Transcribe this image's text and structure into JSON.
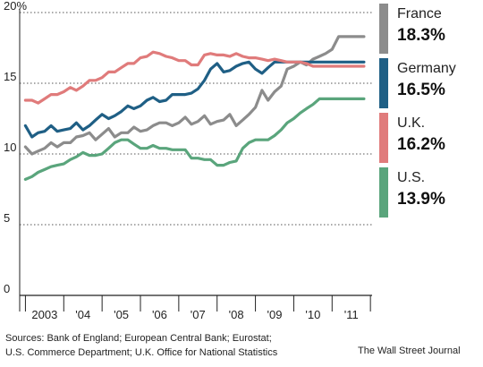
{
  "chart_data": {
    "type": "line",
    "y_tick_labels": [
      "20%",
      "15",
      "10",
      "5",
      "0"
    ],
    "y_ticks": [
      20,
      15,
      10,
      5,
      0
    ],
    "ylim": [
      0,
      20
    ],
    "x_tick_labels": [
      "2003",
      "'04",
      "'05",
      "'06",
      "'07",
      "'08",
      "'09",
      "'10",
      "'11"
    ],
    "xlim": [
      2002.85,
      2011.95
    ],
    "grid": "horizontal dotted",
    "legend_placement": "right",
    "series": [
      {
        "name": "France",
        "final_label": "18.3%",
        "color": "#8c8c8c",
        "x": [
          2003.0,
          2003.17,
          2003.33,
          2003.5,
          2003.67,
          2003.83,
          2004.0,
          2004.17,
          2004.33,
          2004.5,
          2004.67,
          2004.83,
          2005.0,
          2005.17,
          2005.33,
          2005.5,
          2005.67,
          2005.83,
          2006.0,
          2006.17,
          2006.33,
          2006.5,
          2006.67,
          2006.83,
          2007.0,
          2007.17,
          2007.33,
          2007.5,
          2007.67,
          2007.83,
          2008.0,
          2008.17,
          2008.33,
          2008.5,
          2008.67,
          2008.83,
          2009.0,
          2009.17,
          2009.33,
          2009.5,
          2009.67,
          2009.83,
          2010.0,
          2010.17,
          2010.33,
          2010.5,
          2010.67,
          2010.83,
          2011.0,
          2011.17,
          2011.33,
          2011.5,
          2011.67,
          2011.83
        ],
        "values": [
          10.5,
          10.0,
          10.2,
          10.4,
          10.8,
          10.5,
          10.8,
          10.8,
          11.2,
          11.3,
          11.5,
          11.0,
          11.4,
          11.8,
          11.2,
          11.5,
          11.5,
          11.9,
          11.6,
          11.7,
          12.0,
          12.2,
          12.2,
          12.0,
          12.2,
          12.6,
          12.1,
          12.3,
          12.7,
          12.1,
          12.3,
          12.4,
          12.8,
          12.0,
          12.4,
          12.8,
          13.3,
          14.5,
          13.8,
          14.4,
          14.8,
          16.0,
          16.2,
          16.5,
          16.3,
          16.7,
          16.9,
          17.1,
          17.4,
          18.3,
          18.3,
          18.3,
          18.3,
          18.3
        ]
      },
      {
        "name": "Germany",
        "final_label": "16.5%",
        "color": "#1f5f85",
        "x": [
          2003.0,
          2003.17,
          2003.33,
          2003.5,
          2003.67,
          2003.83,
          2004.0,
          2004.17,
          2004.33,
          2004.5,
          2004.67,
          2004.83,
          2005.0,
          2005.17,
          2005.33,
          2005.5,
          2005.67,
          2005.83,
          2006.0,
          2006.17,
          2006.33,
          2006.5,
          2006.67,
          2006.83,
          2007.0,
          2007.17,
          2007.33,
          2007.5,
          2007.67,
          2007.83,
          2008.0,
          2008.17,
          2008.33,
          2008.5,
          2008.67,
          2008.83,
          2009.0,
          2009.17,
          2009.33,
          2009.5,
          2009.67,
          2009.83,
          2010.0,
          2010.17,
          2010.33,
          2010.5,
          2010.67,
          2010.83,
          2011.0,
          2011.17,
          2011.33,
          2011.5,
          2011.67,
          2011.83
        ],
        "values": [
          12.0,
          11.2,
          11.5,
          11.6,
          12.0,
          11.6,
          11.7,
          11.8,
          12.2,
          11.7,
          12.0,
          12.4,
          12.8,
          12.5,
          12.7,
          13.0,
          13.4,
          13.2,
          13.4,
          13.8,
          14.0,
          13.7,
          13.8,
          14.2,
          14.2,
          14.2,
          14.3,
          14.6,
          15.2,
          16.0,
          16.4,
          15.8,
          15.9,
          16.2,
          16.4,
          16.5,
          16.0,
          15.7,
          16.1,
          16.5,
          16.5,
          16.5,
          16.5,
          16.5,
          16.5,
          16.5,
          16.5,
          16.5,
          16.5,
          16.5,
          16.5,
          16.5,
          16.5,
          16.5
        ]
      },
      {
        "name": "U.K.",
        "final_label": "16.2%",
        "color": "#e07b7b",
        "x": [
          2003.0,
          2003.17,
          2003.33,
          2003.5,
          2003.67,
          2003.83,
          2004.0,
          2004.17,
          2004.33,
          2004.5,
          2004.67,
          2004.83,
          2005.0,
          2005.17,
          2005.33,
          2005.5,
          2005.67,
          2005.83,
          2006.0,
          2006.17,
          2006.33,
          2006.5,
          2006.67,
          2006.83,
          2007.0,
          2007.17,
          2007.33,
          2007.5,
          2007.67,
          2007.83,
          2008.0,
          2008.17,
          2008.33,
          2008.5,
          2008.67,
          2008.83,
          2009.0,
          2009.17,
          2009.33,
          2009.5,
          2009.67,
          2009.83,
          2010.0,
          2010.17,
          2010.33,
          2010.5,
          2010.67,
          2010.83,
          2011.0,
          2011.17,
          2011.33,
          2011.5,
          2011.67,
          2011.83
        ],
        "values": [
          13.8,
          13.8,
          13.6,
          13.9,
          14.2,
          14.2,
          14.4,
          14.7,
          14.5,
          14.8,
          15.2,
          15.2,
          15.4,
          15.8,
          15.8,
          16.1,
          16.4,
          16.4,
          16.8,
          16.9,
          17.2,
          17.1,
          16.9,
          16.8,
          16.6,
          16.6,
          16.3,
          16.3,
          17.0,
          17.1,
          17.0,
          17.0,
          16.9,
          17.1,
          16.9,
          16.8,
          16.8,
          16.7,
          16.6,
          16.7,
          16.6,
          16.5,
          16.5,
          16.5,
          16.4,
          16.2,
          16.2,
          16.2,
          16.2,
          16.2,
          16.2,
          16.2,
          16.2,
          16.2
        ]
      },
      {
        "name": "U.S.",
        "final_label": "13.9%",
        "color": "#5aa57c",
        "x": [
          2003.0,
          2003.17,
          2003.33,
          2003.5,
          2003.67,
          2003.83,
          2004.0,
          2004.17,
          2004.33,
          2004.5,
          2004.67,
          2004.83,
          2005.0,
          2005.17,
          2005.33,
          2005.5,
          2005.67,
          2005.83,
          2006.0,
          2006.17,
          2006.33,
          2006.5,
          2006.67,
          2006.83,
          2007.0,
          2007.17,
          2007.33,
          2007.5,
          2007.67,
          2007.83,
          2008.0,
          2008.17,
          2008.33,
          2008.5,
          2008.67,
          2008.83,
          2009.0,
          2009.17,
          2009.33,
          2009.5,
          2009.67,
          2009.83,
          2010.0,
          2010.17,
          2010.33,
          2010.5,
          2010.67,
          2010.83,
          2011.0,
          2011.17,
          2011.33,
          2011.5,
          2011.67,
          2011.83
        ],
        "values": [
          8.2,
          8.4,
          8.7,
          8.9,
          9.1,
          9.2,
          9.3,
          9.6,
          9.8,
          10.1,
          9.9,
          9.9,
          10.0,
          10.4,
          10.8,
          11.0,
          11.0,
          10.7,
          10.4,
          10.4,
          10.6,
          10.4,
          10.4,
          10.3,
          10.3,
          10.3,
          9.7,
          9.7,
          9.6,
          9.6,
          9.2,
          9.2,
          9.4,
          9.5,
          10.4,
          10.8,
          11.0,
          11.0,
          11.0,
          11.3,
          11.7,
          12.2,
          12.5,
          12.9,
          13.2,
          13.5,
          13.9,
          13.9,
          13.9,
          13.9,
          13.9,
          13.9,
          13.9,
          13.9
        ]
      }
    ]
  },
  "legend": {
    "items": [
      {
        "name": "France",
        "value": "18.3%",
        "color": "#8c8c8c"
      },
      {
        "name": "Germany",
        "value": "16.5%",
        "color": "#1f5f85"
      },
      {
        "name": "U.K.",
        "value": "16.2%",
        "color": "#e07b7b"
      },
      {
        "name": "U.S.",
        "value": "13.9%",
        "color": "#5aa57c"
      }
    ]
  },
  "footer": {
    "sources_line1": "Sources: Bank of England; European Central Bank; Eurostat;",
    "sources_line2": "U.S. Commerce Department; U.K. Office for National Statistics",
    "credit": "The Wall Street Journal"
  }
}
